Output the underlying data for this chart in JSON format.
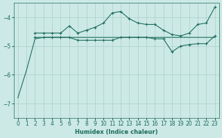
{
  "xlabel": "Humidex (Indice chaleur)",
  "background_color": "#cce9e5",
  "grid_color": "#aacfc9",
  "line_color": "#1a6b5a",
  "xlim": [
    -0.5,
    23.5
  ],
  "ylim": [
    -7.5,
    -3.5
  ],
  "yticks": [
    -7,
    -6,
    -5,
    -4
  ],
  "xticks": [
    0,
    1,
    2,
    3,
    4,
    5,
    6,
    7,
    8,
    9,
    10,
    11,
    12,
    13,
    14,
    15,
    16,
    17,
    18,
    19,
    20,
    21,
    22,
    23
  ],
  "series": [
    {
      "x": [
        0,
        1,
        2,
        3,
        4,
        5,
        6,
        7,
        8,
        9,
        10,
        11,
        12,
        13,
        14,
        15,
        16,
        17,
        18,
        19,
        20,
        21,
        22,
        23
      ],
      "y": [
        -6.8,
        -5.85,
        -4.75,
        -4.7,
        -4.7,
        -4.7,
        -4.7,
        -4.7,
        -4.7,
        -4.7,
        -4.7,
        -4.7,
        -4.7,
        -4.7,
        -4.7,
        -4.7,
        -4.7,
        -4.7,
        -4.7,
        -4.7,
        -4.7,
        -4.7,
        -4.7,
        -4.7
      ],
      "marker": null
    },
    {
      "x": [
        2,
        3,
        4,
        5,
        6,
        7,
        8,
        9,
        10,
        11,
        12,
        13,
        14,
        15,
        16,
        17,
        18,
        19,
        20,
        21,
        22,
        23
      ],
      "y": [
        -4.55,
        -4.55,
        -4.55,
        -4.55,
        -4.3,
        -4.55,
        -4.45,
        -4.35,
        -4.2,
        -3.85,
        -3.8,
        -4.05,
        -4.2,
        -4.25,
        -4.25,
        -4.45,
        -4.6,
        -4.65,
        -4.55,
        -4.25,
        -4.2,
        -3.65
      ],
      "marker": "+"
    },
    {
      "x": [
        2,
        3,
        4,
        5,
        6,
        7,
        8,
        9,
        10,
        11,
        12,
        13,
        14,
        15,
        16,
        17,
        18,
        19,
        20,
        21,
        22,
        23
      ],
      "y": [
        -4.7,
        -4.7,
        -4.7,
        -4.7,
        -4.7,
        -4.8,
        -4.8,
        -4.8,
        -4.8,
        -4.8,
        -4.7,
        -4.7,
        -4.7,
        -4.7,
        -4.75,
        -4.75,
        -5.2,
        -5.0,
        -4.95,
        -4.92,
        -4.92,
        -4.65
      ],
      "marker": "+"
    }
  ]
}
